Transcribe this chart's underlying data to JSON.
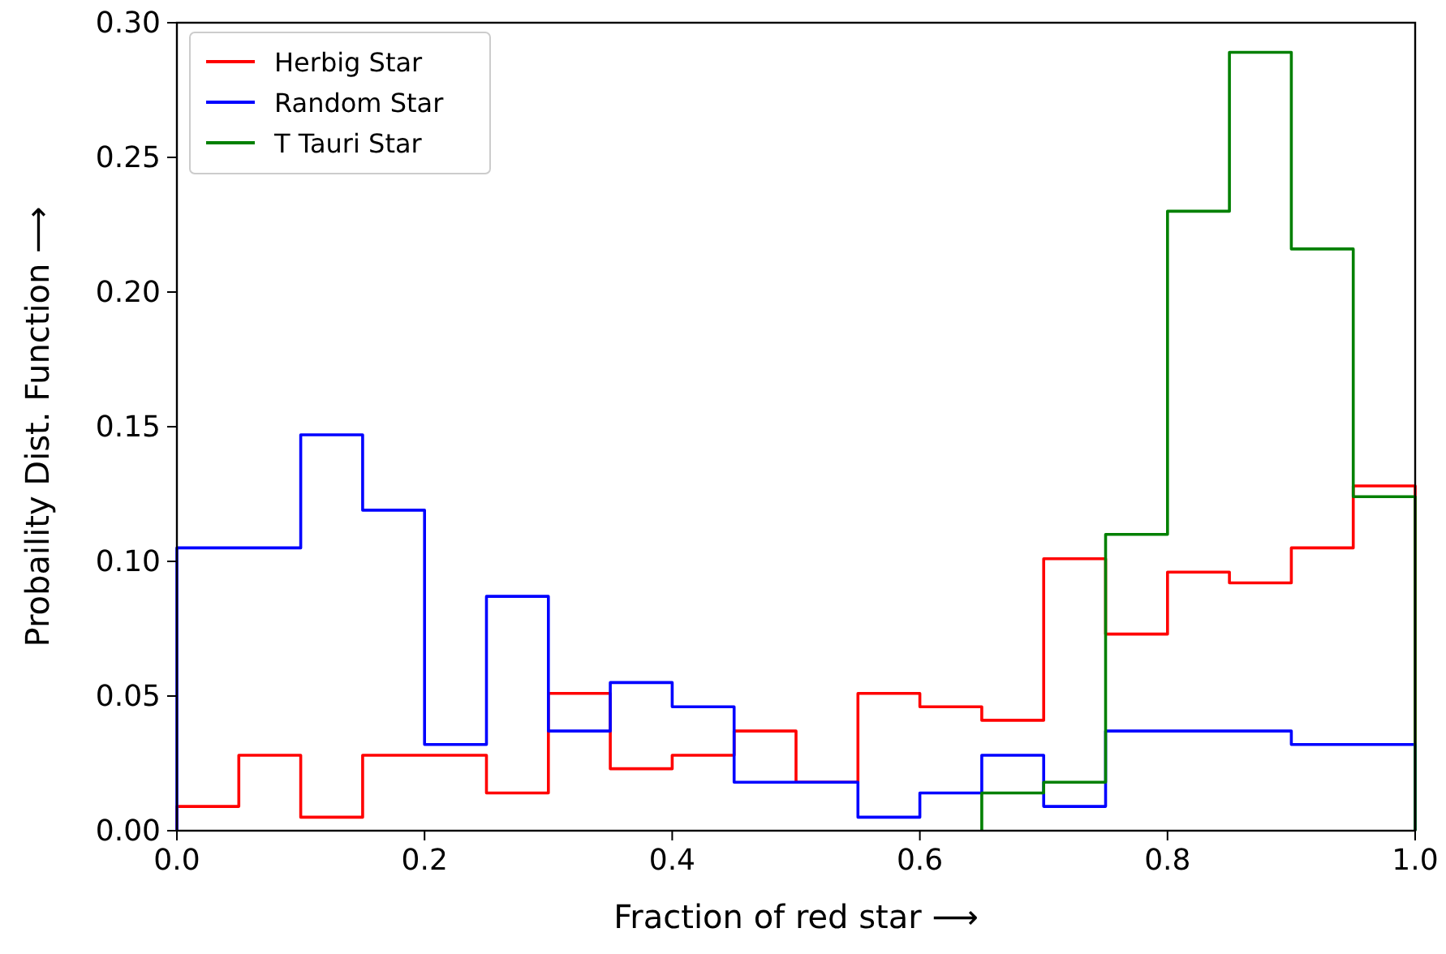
{
  "chart_data": {
    "type": "histogram",
    "xlabel": "Fraction of red star ⟶",
    "ylabel": "Probaility Dist. Function ⟶",
    "bins": [
      0,
      0.05,
      0.1,
      0.15,
      0.2,
      0.25,
      0.3,
      0.35,
      0.4,
      0.45,
      0.5,
      0.55,
      0.6,
      0.65,
      0.7,
      0.75,
      0.8,
      0.85,
      0.9,
      0.95,
      1.0
    ],
    "series": [
      {
        "name": "Herbig Star",
        "color": "#ff0000",
        "values": [
          0.009,
          0.028,
          0.005,
          0.028,
          0.028,
          0.014,
          0.051,
          0.023,
          0.028,
          0.037,
          0.018,
          0.051,
          0.046,
          0.041,
          0.101,
          0.073,
          0.096,
          0.092,
          0.105,
          0.128
        ]
      },
      {
        "name": "Random Star",
        "color": "#0000ff",
        "values": [
          0.105,
          0.105,
          0.147,
          0.119,
          0.032,
          0.087,
          0.037,
          0.055,
          0.046,
          0.018,
          0.018,
          0.005,
          0.014,
          0.028,
          0.009,
          0.037,
          0.037,
          0.037,
          0.032,
          0.032
        ]
      },
      {
        "name": "T Tauri Star",
        "color": "#008000",
        "bins": [
          0.65,
          0.7,
          0.75,
          0.8,
          0.85,
          0.9,
          0.95,
          1.0
        ],
        "values": [
          0.014,
          0.018,
          0.11,
          0.23,
          0.289,
          0.216,
          0.124
        ]
      }
    ],
    "xlim": [
      0,
      1
    ],
    "ylim": [
      0,
      0.3
    ],
    "xticks": [
      {
        "value": 0,
        "label": "0.0"
      },
      {
        "value": 0.2,
        "label": "0.2"
      },
      {
        "value": 0.4,
        "label": "0.4"
      },
      {
        "value": 0.6,
        "label": "0.6"
      },
      {
        "value": 0.8,
        "label": "0.8"
      },
      {
        "value": 1,
        "label": "1.0"
      }
    ],
    "yticks": [
      {
        "value": 0,
        "label": "0.00"
      },
      {
        "value": 0.05,
        "label": "0.05"
      },
      {
        "value": 0.1,
        "label": "0.10"
      },
      {
        "value": 0.15,
        "label": "0.15"
      },
      {
        "value": 0.2,
        "label": "0.20"
      },
      {
        "value": 0.25,
        "label": "0.25"
      },
      {
        "value": 0.3,
        "label": "0.30"
      }
    ],
    "grid": false,
    "legend": "top left"
  }
}
